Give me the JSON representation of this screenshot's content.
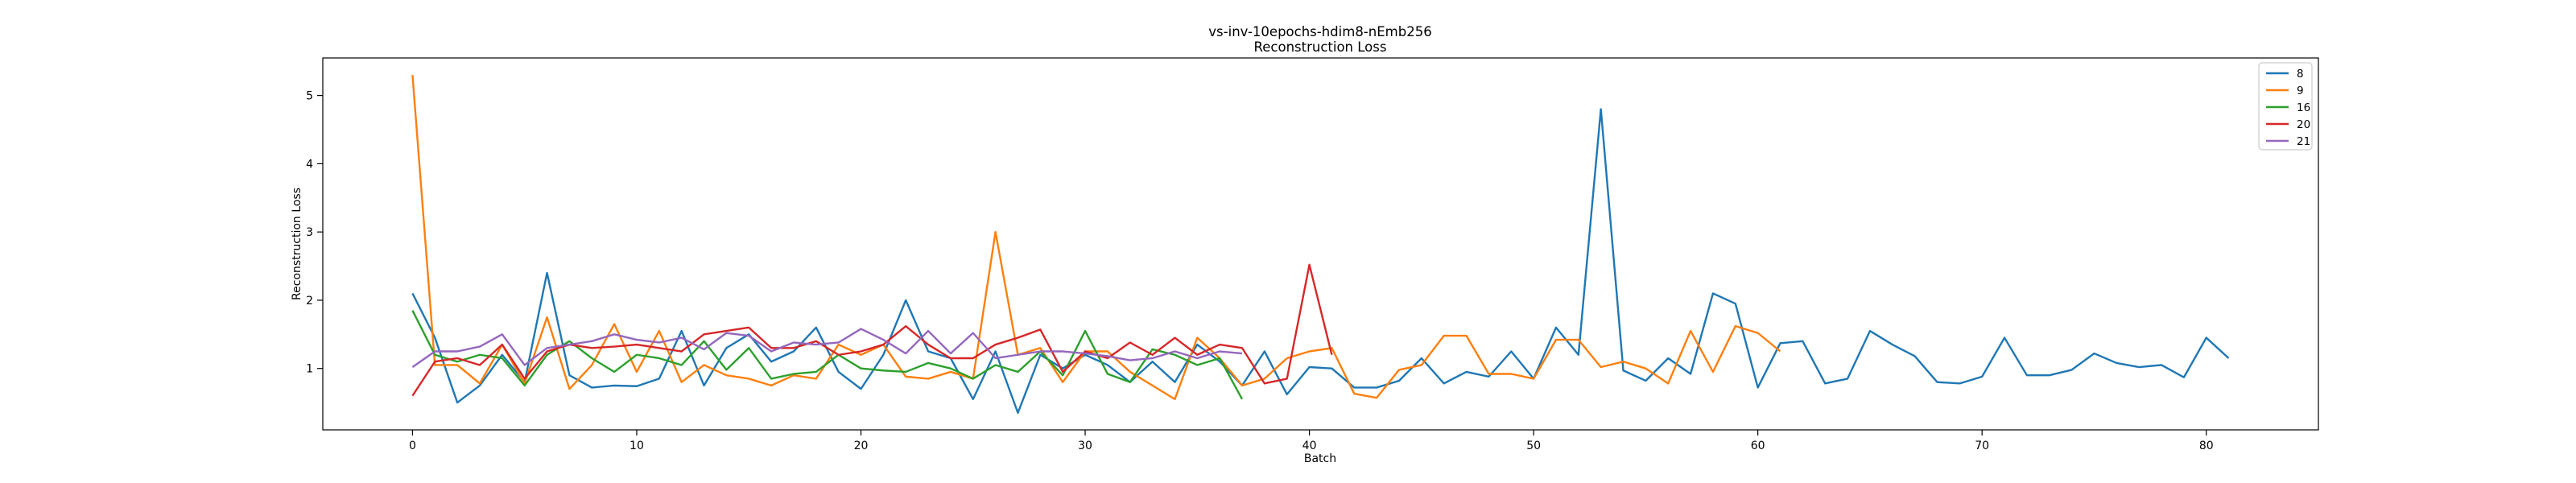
{
  "chart_data": {
    "type": "line",
    "title": "vs-inv-10epochs-hdim8-nEmb256",
    "subtitle": "Reconstruction Loss",
    "xlabel": "Batch",
    "ylabel": "Reconstruction Loss",
    "xlim": [
      -4,
      85
    ],
    "ylim": [
      0.1,
      5.55
    ],
    "xticks": [
      0,
      10,
      20,
      30,
      40,
      50,
      60,
      70,
      80
    ],
    "yticks": [
      1,
      2,
      3,
      4,
      5
    ],
    "grid": false,
    "legend_position": "top-right",
    "series": [
      {
        "name": "8",
        "color": "#1f77b4",
        "values": [
          2.1,
          1.45,
          0.5,
          0.75,
          1.2,
          0.8,
          2.4,
          0.9,
          0.72,
          0.75,
          0.74,
          0.85,
          1.55,
          0.75,
          1.3,
          1.5,
          1.1,
          1.25,
          1.6,
          0.95,
          0.7,
          1.2,
          2.0,
          1.25,
          1.15,
          0.55,
          1.25,
          0.35,
          1.2,
          1.0,
          1.2,
          1.05,
          0.8,
          1.1,
          0.8,
          1.35,
          1.1,
          0.75,
          1.25,
          0.62,
          1.02,
          1.0,
          0.72,
          0.72,
          0.82,
          1.15,
          0.78,
          0.95,
          0.88,
          1.25,
          0.85,
          1.6,
          1.2,
          4.8,
          0.97,
          0.82,
          1.15,
          0.92,
          2.1,
          1.95,
          0.72,
          1.37,
          1.4,
          0.78,
          0.85,
          1.55,
          1.35,
          1.18,
          0.8,
          0.78,
          0.88,
          1.45,
          0.9,
          0.9,
          0.98,
          1.22,
          1.08,
          1.02,
          1.05,
          0.87,
          1.45,
          1.15
        ]
      },
      {
        "name": "9",
        "color": "#ff7f0e",
        "values": [
          5.3,
          1.05,
          1.05,
          0.78,
          1.35,
          0.78,
          1.75,
          0.7,
          1.05,
          1.65,
          0.95,
          1.55,
          0.8,
          1.05,
          0.9,
          0.85,
          0.75,
          0.9,
          0.85,
          1.35,
          1.2,
          1.35,
          0.88,
          0.85,
          0.95,
          0.85,
          3.0,
          1.2,
          1.3,
          0.8,
          1.25,
          1.25,
          0.95,
          0.75,
          0.55,
          1.45,
          1.15,
          0.75,
          0.85,
          1.15,
          1.25,
          1.3,
          0.63,
          0.57,
          0.98,
          1.05,
          1.48,
          1.48,
          0.92,
          0.92,
          0.85,
          1.42,
          1.42,
          1.02,
          1.1,
          1.0,
          0.78,
          1.55,
          0.95,
          1.62,
          1.52,
          1.25
        ]
      },
      {
        "name": "16",
        "color": "#2ca02c",
        "values": [
          1.85,
          1.2,
          1.1,
          1.2,
          1.15,
          0.75,
          1.2,
          1.4,
          1.15,
          0.95,
          1.2,
          1.15,
          1.05,
          1.4,
          0.98,
          1.3,
          0.85,
          0.92,
          0.95,
          1.2,
          1.0,
          0.97,
          0.95,
          1.08,
          1.0,
          0.85,
          1.05,
          0.95,
          1.25,
          0.9,
          1.55,
          0.92,
          0.8,
          1.28,
          1.2,
          1.05,
          1.15,
          0.55
        ]
      },
      {
        "name": "20",
        "color": "#d62728",
        "values": [
          0.6,
          1.1,
          1.15,
          1.05,
          1.35,
          0.85,
          1.25,
          1.35,
          1.3,
          1.32,
          1.35,
          1.3,
          1.25,
          1.5,
          1.55,
          1.6,
          1.3,
          1.3,
          1.4,
          1.2,
          1.25,
          1.35,
          1.62,
          1.35,
          1.15,
          1.15,
          1.35,
          1.45,
          1.57,
          0.95,
          1.25,
          1.15,
          1.38,
          1.2,
          1.45,
          1.2,
          1.35,
          1.3,
          0.78,
          0.85,
          2.52,
          1.2
        ]
      },
      {
        "name": "21",
        "color": "#9467bd",
        "values": [
          1.02,
          1.25,
          1.25,
          1.32,
          1.5,
          1.05,
          1.3,
          1.35,
          1.4,
          1.5,
          1.42,
          1.38,
          1.45,
          1.28,
          1.52,
          1.48,
          1.25,
          1.38,
          1.35,
          1.38,
          1.58,
          1.42,
          1.22,
          1.55,
          1.22,
          1.52,
          1.15,
          1.2,
          1.25,
          1.25,
          1.22,
          1.18,
          1.12,
          1.15,
          1.25,
          1.15,
          1.25,
          1.22
        ]
      }
    ]
  }
}
